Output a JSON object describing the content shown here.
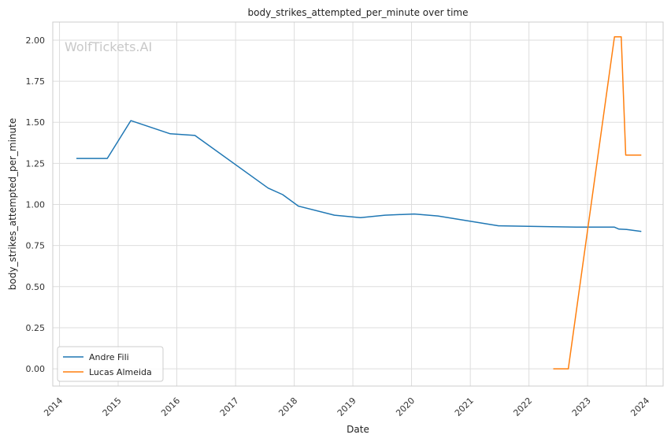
{
  "chart_data": {
    "type": "line",
    "title": "body_strikes_attempted_per_minute over time",
    "xlabel": "Date",
    "ylabel": "body_strikes_attempted_per_minute",
    "watermark": "WolfTickets.AI",
    "x_ticks": [
      "2014",
      "2015",
      "2016",
      "2017",
      "2018",
      "2019",
      "2020",
      "2021",
      "2022",
      "2023",
      "2024"
    ],
    "y_ticks": [
      "0.00",
      "0.25",
      "0.50",
      "0.75",
      "1.00",
      "1.25",
      "1.50",
      "1.75",
      "2.00"
    ],
    "xlim": [
      "2013-11-20",
      "2024-04-15"
    ],
    "ylim": [
      -0.105,
      2.11
    ],
    "grid": true,
    "legend_position": "lower-left",
    "series": [
      {
        "name": "Andre Fili",
        "color": "#1f77b4",
        "points": [
          [
            "2014-04-16",
            1.28
          ],
          [
            "2014-10-25",
            1.28
          ],
          [
            "2015-03-21",
            1.51
          ],
          [
            "2015-11-21",
            1.43
          ],
          [
            "2016-04-23",
            1.42
          ],
          [
            "2017-07-22",
            1.1
          ],
          [
            "2017-10-21",
            1.06
          ],
          [
            "2018-01-27",
            0.99
          ],
          [
            "2018-09-08",
            0.935
          ],
          [
            "2019-02-17",
            0.92
          ],
          [
            "2019-07-20",
            0.935
          ],
          [
            "2020-01-18",
            0.942
          ],
          [
            "2020-06-13",
            0.93
          ],
          [
            "2021-06-26",
            0.87
          ],
          [
            "2022-05-21",
            0.865
          ],
          [
            "2022-10-22",
            0.862
          ],
          [
            "2023-06-17",
            0.862
          ],
          [
            "2023-07-15",
            0.85
          ],
          [
            "2023-09-01",
            0.848
          ],
          [
            "2023-12-01",
            0.836
          ]
        ]
      },
      {
        "name": "Lucas Almeida",
        "color": "#ff7f0e",
        "points": [
          [
            "2022-06-01",
            0.0
          ],
          [
            "2022-09-03",
            0.0
          ],
          [
            "2023-06-17",
            2.02
          ],
          [
            "2023-07-29",
            2.02
          ],
          [
            "2023-08-26",
            1.3
          ],
          [
            "2023-12-01",
            1.3
          ]
        ]
      }
    ]
  }
}
